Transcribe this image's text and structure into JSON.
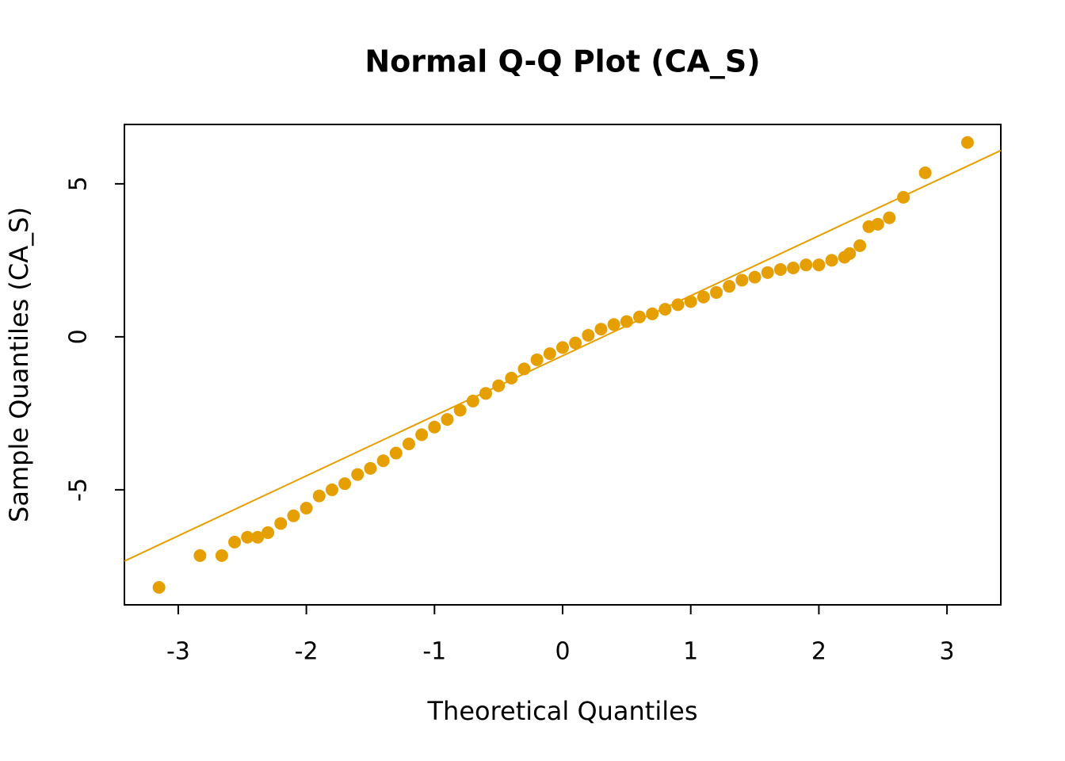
{
  "chart_data": {
    "type": "scatter",
    "title": "Normal Q-Q Plot (CA_S)",
    "x_label": "Theoretical Quantiles",
    "y_label": "Sample Quantiles (CA_S)",
    "color": "#e69f00",
    "xlim": [
      -3.42,
      3.42
    ],
    "ylim": [
      -8.76,
      6.94
    ],
    "xticks": [
      -3,
      -2,
      -1,
      0,
      1,
      2,
      3
    ],
    "yticks": [
      -5,
      0,
      5
    ],
    "x": [
      -3.15,
      -2.83,
      -2.66,
      -2.56,
      -2.46,
      -2.38,
      -2.3,
      -2.2,
      -2.1,
      -2.0,
      -1.9,
      -1.8,
      -1.7,
      -1.6,
      -1.5,
      -1.4,
      -1.3,
      -1.2,
      -1.1,
      -1.0,
      -0.9,
      -0.8,
      -0.7,
      -0.6,
      -0.5,
      -0.4,
      -0.3,
      -0.2,
      -0.1,
      0.0,
      0.1,
      0.2,
      0.3,
      0.4,
      0.5,
      0.6,
      0.7,
      0.8,
      0.9,
      1.0,
      1.1,
      1.2,
      1.3,
      1.4,
      1.5,
      1.6,
      1.7,
      1.8,
      1.9,
      2.0,
      2.1,
      2.2,
      2.24,
      2.32,
      2.39,
      2.46,
      2.55,
      2.66,
      2.83,
      3.16
    ],
    "values": [
      -8.19,
      -7.15,
      -7.15,
      -6.71,
      -6.55,
      -6.55,
      -6.4,
      -6.1,
      -5.85,
      -5.6,
      -5.2,
      -5.0,
      -4.8,
      -4.5,
      -4.3,
      -4.05,
      -3.8,
      -3.5,
      -3.2,
      -2.95,
      -2.7,
      -2.4,
      -2.1,
      -1.85,
      -1.6,
      -1.35,
      -1.05,
      -0.75,
      -0.55,
      -0.35,
      -0.2,
      0.05,
      0.25,
      0.4,
      0.5,
      0.65,
      0.75,
      0.9,
      1.05,
      1.15,
      1.3,
      1.45,
      1.65,
      1.85,
      1.95,
      2.1,
      2.2,
      2.25,
      2.35,
      2.35,
      2.5,
      2.6,
      2.72,
      2.98,
      3.6,
      3.68,
      3.89,
      4.56,
      5.36,
      6.35
    ],
    "reference_line": {
      "x": [
        -3.42,
        3.42
      ],
      "y": [
        -7.33,
        6.09
      ]
    }
  }
}
